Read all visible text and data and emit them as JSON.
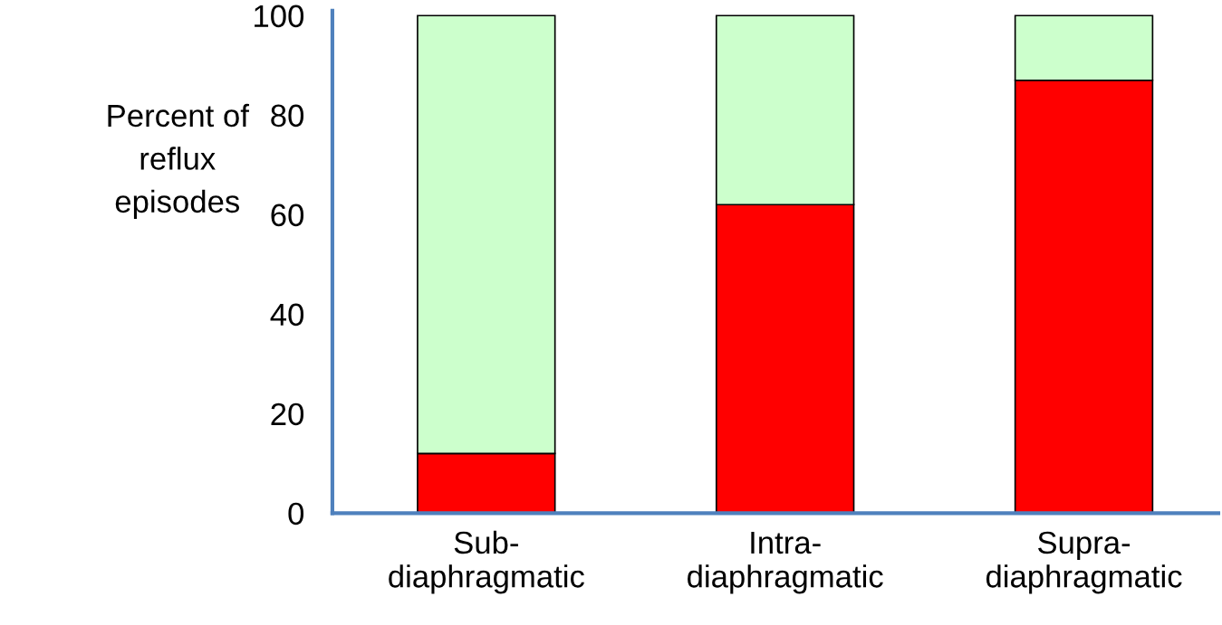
{
  "chart_data": {
    "type": "bar",
    "stacked": true,
    "ylabel": "Percent of\nreflux\nepisodes",
    "categories": [
      "Sub-\ndiaphragmatic",
      "Intra-\ndiaphragmatic",
      "Supra-\ndiaphragmatic"
    ],
    "series": [
      {
        "color": "#ff0000",
        "values": [
          12,
          62,
          87
        ]
      },
      {
        "color": "#ccffcc",
        "values": [
          88,
          38,
          13
        ]
      }
    ],
    "ylim": [
      0,
      101
    ],
    "yticks": [
      0,
      20,
      40,
      60,
      80,
      100
    ],
    "grid": false,
    "legend": false
  }
}
